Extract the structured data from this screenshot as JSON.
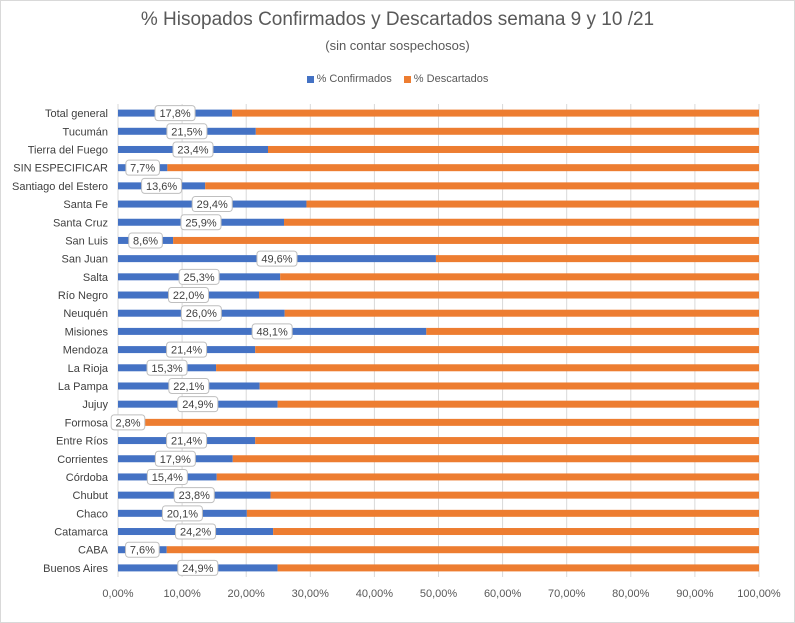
{
  "chart_data": {
    "type": "bar",
    "orientation": "horizontal",
    "stacked": "percent",
    "title": "% Hisopados Confirmados y Descartados semana 9 y 10 /21",
    "subtitle": "(sin contar sospechosos)",
    "categories": [
      "Total general",
      "Tucumán",
      "Tierra del Fuego",
      "SIN ESPECIFICAR",
      "Santiago del Estero",
      "Santa Fe",
      "Santa Cruz",
      "San Luis",
      "San Juan",
      "Salta",
      "Río Negro",
      "Neuquén",
      "Misiones",
      "Mendoza",
      "La Rioja",
      "La Pampa",
      "Jujuy",
      "Formosa",
      "Entre Ríos",
      "Corrientes",
      "Córdoba",
      "Chubut",
      "Chaco",
      "Catamarca",
      "CABA",
      "Buenos Aires"
    ],
    "series": [
      {
        "name": "% Confirmados",
        "color": "#4472c4",
        "values": [
          17.8,
          21.5,
          23.4,
          7.7,
          13.6,
          29.4,
          25.9,
          8.6,
          49.6,
          25.3,
          22.0,
          26.0,
          48.1,
          21.4,
          15.3,
          22.1,
          24.9,
          2.8,
          21.4,
          17.9,
          15.4,
          23.8,
          20.1,
          24.2,
          7.6,
          24.9
        ],
        "data_labels": [
          "17,8%",
          "21,5%",
          "23,4%",
          "7,7%",
          "13,6%",
          "29,4%",
          "25,9%",
          "8,6%",
          "49,6%",
          "25,3%",
          "22,0%",
          "26,0%",
          "48,1%",
          "21,4%",
          "15,3%",
          "22,1%",
          "24,9%",
          "2,8%",
          "21,4%",
          "17,9%",
          "15,4%",
          "23,8%",
          "20,1%",
          "24,2%",
          "7,6%",
          "24,9%"
        ]
      },
      {
        "name": "% Descartados",
        "color": "#ed7d31",
        "values": [
          82.2,
          78.5,
          76.6,
          92.3,
          86.4,
          70.6,
          74.1,
          91.4,
          50.4,
          74.7,
          78.0,
          74.0,
          51.9,
          78.6,
          84.7,
          77.9,
          75.1,
          97.2,
          78.6,
          82.1,
          84.6,
          76.2,
          79.9,
          75.8,
          92.4,
          75.1
        ]
      }
    ],
    "x_ticks": [
      "0,00%",
      "10,00%",
      "20,00%",
      "30,00%",
      "40,00%",
      "50,00%",
      "60,00%",
      "70,00%",
      "80,00%",
      "90,00%",
      "100,00%"
    ],
    "xlim": [
      0,
      100
    ],
    "grid": true,
    "legend_position": "top"
  }
}
